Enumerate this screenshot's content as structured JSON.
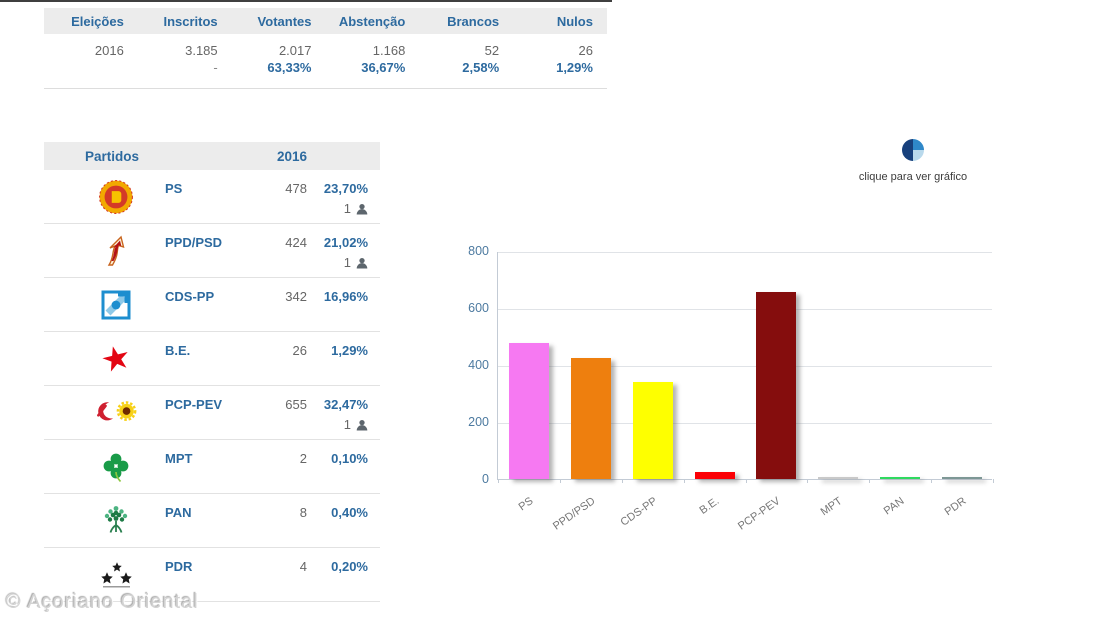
{
  "summary_table": {
    "headers": [
      "Eleições",
      "Inscritos",
      "Votantes",
      "Abstenção",
      "Brancos",
      "Nulos"
    ],
    "row1": [
      "2016",
      "3.185",
      "2.017",
      "1.168",
      "52",
      "26"
    ],
    "row2": [
      "",
      "-",
      "63,33%",
      "36,67%",
      "2,58%",
      "1,29%"
    ]
  },
  "parties_table": {
    "header_label": "Partidos",
    "year_label": "2016",
    "rows": [
      {
        "party": "PS",
        "logo": "ps",
        "votes": "478",
        "pct": "23,70%",
        "elected": "1"
      },
      {
        "party": "PPD/PSD",
        "logo": "ppdpsd",
        "votes": "424",
        "pct": "21,02%",
        "elected": "1"
      },
      {
        "party": "CDS-PP",
        "logo": "cdspp",
        "votes": "342",
        "pct": "16,96%",
        "elected": null
      },
      {
        "party": "B.E.",
        "logo": "be",
        "votes": "26",
        "pct": "1,29%",
        "elected": null
      },
      {
        "party": "PCP-PEV",
        "logo": "pcppev",
        "votes": "655",
        "pct": "32,47%",
        "elected": "1"
      },
      {
        "party": "MPT",
        "logo": "mpt",
        "votes": "2",
        "pct": "0,10%",
        "elected": null
      },
      {
        "party": "PAN",
        "logo": "pan",
        "votes": "8",
        "pct": "0,40%",
        "elected": null
      },
      {
        "party": "PDR",
        "logo": "pdr",
        "votes": "4",
        "pct": "0,20%",
        "elected": null
      }
    ]
  },
  "chart_link": {
    "label": "clique para ver gráfico",
    "icon": "pie-chart-icon",
    "icon_colors": {
      "left": "#17407c",
      "top_right": "#2f88c9",
      "bottom_right": "#b9d9ec"
    }
  },
  "chart_data": {
    "type": "bar",
    "categories": [
      "PS",
      "PPD/PSD",
      "CDS-PP",
      "B.E.",
      "PCP-PEV",
      "MPT",
      "PAN",
      "PDR"
    ],
    "values": [
      478,
      424,
      342,
      26,
      655,
      2,
      8,
      4
    ],
    "colors": [
      "#f679f2",
      "#ee7f0e",
      "#feff00",
      "#fb0006",
      "#850d0d",
      "#c9c9c9",
      "#2fd95f",
      "#7d9795"
    ],
    "title": "",
    "xlabel": "",
    "ylabel": "",
    "ylim": [
      0,
      800
    ],
    "yticks": [
      0,
      200,
      400,
      600,
      800
    ],
    "grid": true,
    "legend": "none"
  },
  "footer": {
    "watermark": "© Açoriano Oriental"
  }
}
